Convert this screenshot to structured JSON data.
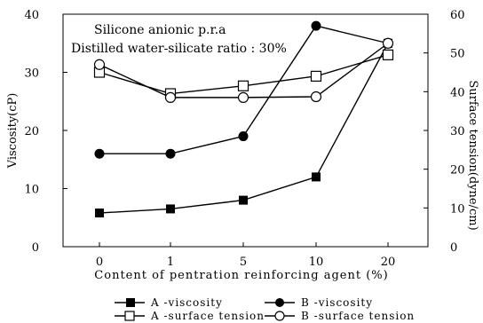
{
  "chart_data": {
    "type": "line",
    "annotations": [
      "Silicone anionic p.r.a",
      "Distilled water-silicate ratio : 30%"
    ],
    "xlabel": "Content of pentration reinforcing agent (%)",
    "ylabel_left": "Viscosity(cP)",
    "ylabel_right": "Surface tension(dyne/cm)",
    "categories": [
      "0",
      "1",
      "5",
      "10",
      "20"
    ],
    "ylim_left": [
      0,
      40
    ],
    "ylim_right": [
      0,
      60
    ],
    "yticks_left": [
      "0",
      "10",
      "20",
      "30",
      "40"
    ],
    "yticks_right": [
      "0",
      "10",
      "20",
      "30",
      "40",
      "50",
      "60"
    ],
    "grid": false,
    "legend_position": "bottom",
    "series": [
      {
        "name": "A -viscosity",
        "axis": "left",
        "marker": "filled-square",
        "values": [
          5.8,
          6.5,
          8.0,
          12.0,
          35.0
        ]
      },
      {
        "name": "B -viscosity",
        "axis": "left",
        "marker": "filled-circle",
        "values": [
          16.0,
          16.0,
          19.0,
          38.0,
          35.0
        ]
      },
      {
        "name": "A -surface tension",
        "axis": "right",
        "marker": "open-square",
        "values": [
          45.0,
          39.5,
          41.5,
          44.0,
          49.5
        ]
      },
      {
        "name": "B -surface tension",
        "axis": "right",
        "marker": "open-circle",
        "values": [
          47.0,
          38.5,
          38.5,
          38.7,
          52.5
        ]
      }
    ]
  }
}
